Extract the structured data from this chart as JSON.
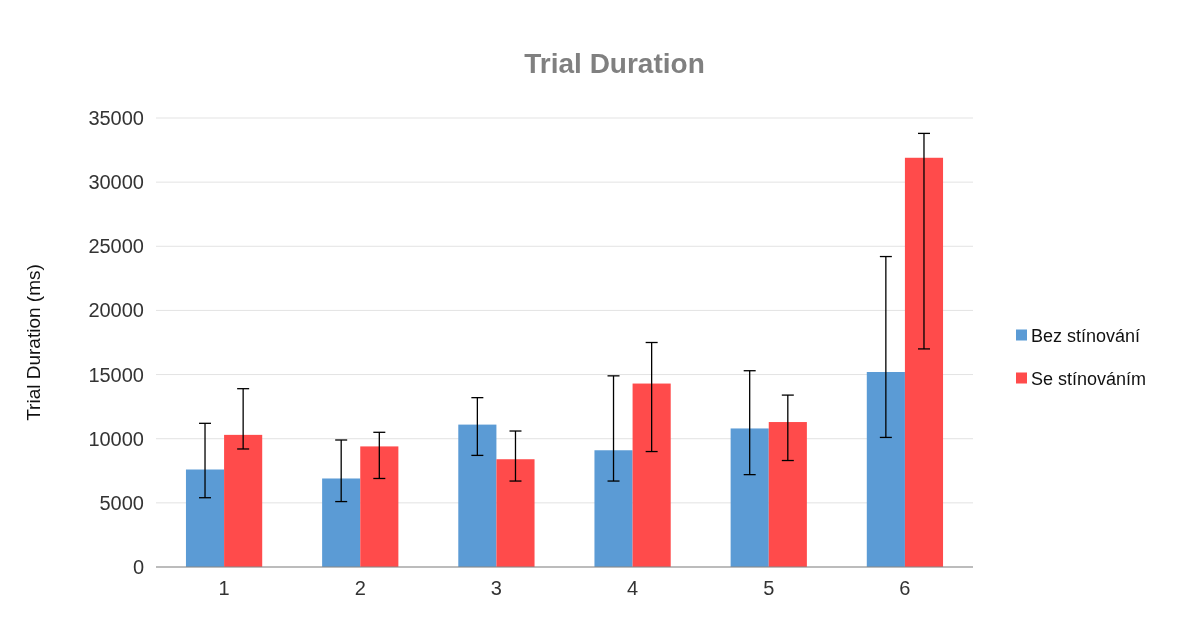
{
  "chart_data": {
    "type": "bar",
    "title": "Trial Duration",
    "ylabel": "Trial Duration (ms)",
    "categories": [
      "1",
      "2",
      "3",
      "4",
      "5",
      "6"
    ],
    "series": [
      {
        "name": "Bez stínování",
        "color": "#5b9bd5",
        "values": [
          7600,
          6900,
          11100,
          9100,
          10800,
          15200
        ],
        "errors": [
          [
            5400,
            11200
          ],
          [
            5100,
            9900
          ],
          [
            8700,
            13200
          ],
          [
            6700,
            14900
          ],
          [
            7200,
            15300
          ],
          [
            10100,
            24200
          ]
        ]
      },
      {
        "name": "Se stínováním",
        "color": "#ff4b4b",
        "values": [
          10300,
          9400,
          8400,
          14300,
          11300,
          31900
        ],
        "errors": [
          [
            9200,
            13900
          ],
          [
            6900,
            10500
          ],
          [
            6700,
            10600
          ],
          [
            9000,
            17500
          ],
          [
            8300,
            13400
          ],
          [
            17000,
            33800
          ]
        ]
      }
    ],
    "ylim": [
      0,
      35000
    ],
    "yticks": [
      0,
      5000,
      10000,
      15000,
      20000,
      25000,
      30000,
      35000
    ],
    "grid": "y",
    "legend": "right"
  }
}
